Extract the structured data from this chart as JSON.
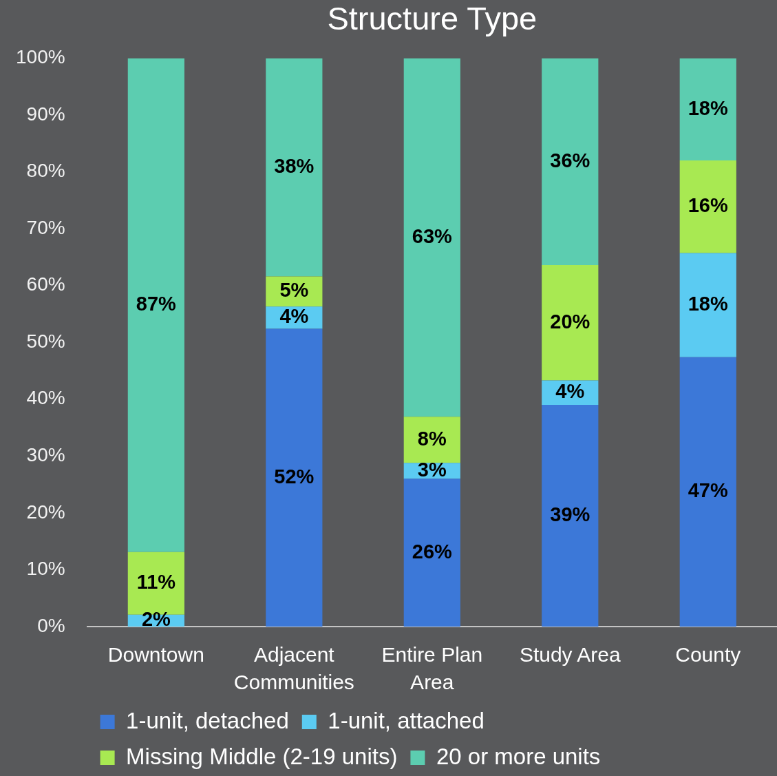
{
  "chart_data": {
    "type": "bar",
    "title": "Structure Type",
    "stacked": true,
    "legend": "bottom",
    "categories": [
      "Downtown",
      "Adjacent Communities",
      "Entire Plan Area",
      "Study Area",
      "County"
    ],
    "ylim": [
      0,
      100
    ],
    "yticks": [
      {
        "value": 0,
        "label": "0%"
      },
      {
        "value": 10,
        "label": "10%"
      },
      {
        "value": 20,
        "label": "20%"
      },
      {
        "value": 30,
        "label": "30%"
      },
      {
        "value": 40,
        "label": "40%"
      },
      {
        "value": 50,
        "label": "50%"
      },
      {
        "value": 60,
        "label": "60%"
      },
      {
        "value": 70,
        "label": "70%"
      },
      {
        "value": 80,
        "label": "80%"
      },
      {
        "value": 90,
        "label": "90%"
      },
      {
        "value": 100,
        "label": "100%"
      }
    ],
    "series": [
      {
        "name": "1-unit, detached",
        "color": "#3c78d8",
        "values": [
          0,
          52.4,
          26.0,
          39.0,
          47.4
        ],
        "value_labels": [
          null,
          "52%",
          "26%",
          "39%",
          "47%"
        ]
      },
      {
        "name": "1-unit, attached",
        "color": "#5bcbf2",
        "values": [
          2.1,
          3.9,
          2.8,
          4.3,
          18.3
        ],
        "value_labels": [
          "2%",
          "4%",
          "3%",
          "4%",
          "18%"
        ]
      },
      {
        "name": "Missing Middle (2-19 units)",
        "color": "#a8e952",
        "values": [
          11.0,
          5.3,
          8.1,
          20.3,
          16.3
        ],
        "value_labels": [
          "11%",
          "5%",
          "8%",
          "20%",
          "16%"
        ]
      },
      {
        "name": "20 or more units",
        "color": "#5ccdb0",
        "values": [
          86.9,
          38.4,
          63.1,
          36.4,
          18.0
        ],
        "value_labels": [
          "87%",
          "38%",
          "63%",
          "36%",
          "18%"
        ]
      }
    ]
  }
}
